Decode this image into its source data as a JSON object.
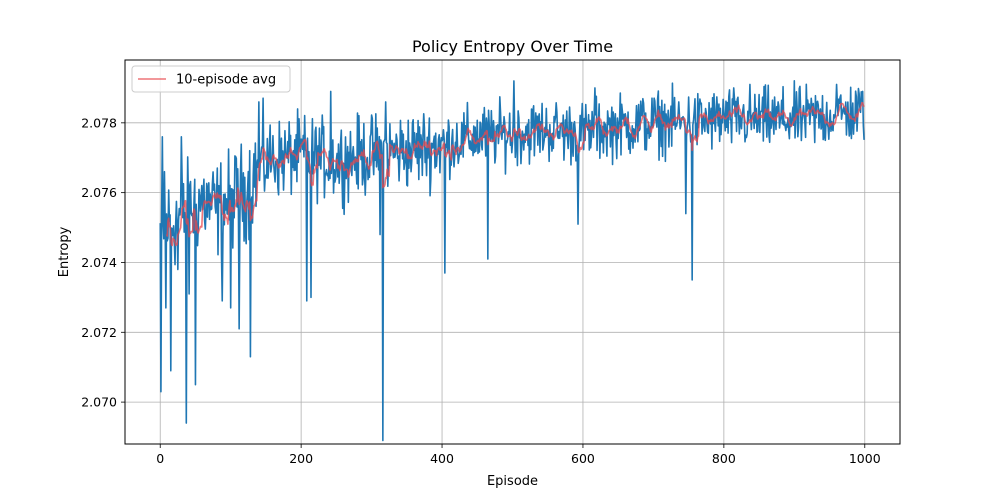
{
  "chart_data": {
    "type": "line",
    "title": "Policy Entropy Over Time",
    "xlabel": "Episode",
    "ylabel": "Entropy",
    "xlim": [
      -50,
      1050
    ],
    "ylim": [
      2.0688,
      2.0798
    ],
    "xticks": [
      0,
      200,
      400,
      600,
      800,
      1000
    ],
    "xtick_labels": [
      "0",
      "200",
      "400",
      "600",
      "800",
      "1000"
    ],
    "yticks": [
      2.07,
      2.072,
      2.074,
      2.076,
      2.078
    ],
    "ytick_labels": [
      "2.070",
      "2.072",
      "2.074",
      "2.076",
      "2.078"
    ],
    "grid": true,
    "legend_position": "top-left",
    "series": [
      {
        "name": "",
        "role": "raw",
        "color": "#1f77b4",
        "anchors_x": [
          0,
          20,
          40,
          60,
          80,
          100,
          120,
          140,
          160,
          180,
          200,
          250,
          300,
          350,
          400,
          450,
          500,
          550,
          600,
          650,
          700,
          750,
          800,
          850,
          900,
          950,
          1000
        ],
        "anchors_y": [
          2.075,
          2.0752,
          2.0755,
          2.0758,
          2.0755,
          2.0758,
          2.076,
          2.0768,
          2.077,
          2.077,
          2.0771,
          2.0769,
          2.0771,
          2.0772,
          2.0774,
          2.0776,
          2.0777,
          2.0778,
          2.0777,
          2.0779,
          2.078,
          2.078,
          2.0781,
          2.0781,
          2.0781,
          2.0782,
          2.0783
        ],
        "spread": 0.0011,
        "spikes": [
          {
            "x": 1,
            "y": 2.0703
          },
          {
            "x": 3,
            "y": 2.0776
          },
          {
            "x": 6,
            "y": 2.0766
          },
          {
            "x": 8,
            "y": 2.0727
          },
          {
            "x": 15,
            "y": 2.0709
          },
          {
            "x": 25,
            "y": 2.0738
          },
          {
            "x": 30,
            "y": 2.0776
          },
          {
            "x": 37,
            "y": 2.0694
          },
          {
            "x": 41,
            "y": 2.0731
          },
          {
            "x": 50,
            "y": 2.0705
          },
          {
            "x": 88,
            "y": 2.0729
          },
          {
            "x": 100,
            "y": 2.0727
          },
          {
            "x": 112,
            "y": 2.0721
          },
          {
            "x": 128,
            "y": 2.0713
          },
          {
            "x": 140,
            "y": 2.0786
          },
          {
            "x": 208,
            "y": 2.0729
          },
          {
            "x": 214,
            "y": 2.073
          },
          {
            "x": 242,
            "y": 2.0789
          },
          {
            "x": 312,
            "y": 2.0748
          },
          {
            "x": 316,
            "y": 2.0689
          },
          {
            "x": 320,
            "y": 2.0786
          },
          {
            "x": 404,
            "y": 2.0737
          },
          {
            "x": 465,
            "y": 2.0741
          },
          {
            "x": 502,
            "y": 2.0792
          },
          {
            "x": 593,
            "y": 2.0751
          },
          {
            "x": 617,
            "y": 2.079
          },
          {
            "x": 746,
            "y": 2.0754
          },
          {
            "x": 755,
            "y": 2.0735
          },
          {
            "x": 837,
            "y": 2.0791
          },
          {
            "x": 960,
            "y": 2.0791
          },
          {
            "x": 997,
            "y": 2.0789
          }
        ]
      },
      {
        "name": "10-episode avg",
        "role": "rolling_mean",
        "window": 10,
        "color": "#e8474c"
      }
    ]
  }
}
